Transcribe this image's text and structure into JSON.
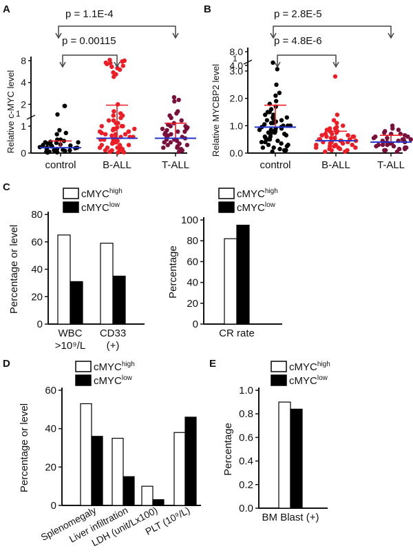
{
  "panels": {
    "A": {
      "letter": "A",
      "ylabel": "Relative c-MYC level",
      "pvals": [
        "p = 1.1E-4",
        "p = 0.00115"
      ]
    },
    "B": {
      "letter": "B",
      "ylabel": "Relative MYCBP2 level",
      "pvals": [
        "p = 2.8E-5",
        "p = 4.8E-6"
      ]
    },
    "C": {
      "letter": "C"
    },
    "D": {
      "letter": "D"
    },
    "E": {
      "letter": "E"
    }
  },
  "legend": {
    "high_base": "cMYC",
    "high_sup": "high",
    "low_base": "cMYC",
    "low_sup": "low"
  },
  "colors": {
    "control": "#000000",
    "ball": "#ee1c25",
    "tall": "#7a0f3c",
    "mean_line": "#2233cc",
    "sd_line": "#ee1c25",
    "high_bar": "#ffffff",
    "low_bar": "#000000"
  },
  "chart_data": [
    {
      "panel": "A",
      "type": "scatter",
      "ylabel": "Relative c-MYC level",
      "categories": [
        "control",
        "B-ALL",
        "T-ALL"
      ],
      "yticks": [
        "0",
        "1",
        "2",
        "4",
        "8"
      ],
      "ybreak_label": "1",
      "comparisons": [
        {
          "from": "control",
          "to": "T-ALL",
          "label": "p = 1.1E-4"
        },
        {
          "from": "control",
          "to": "B-ALL",
          "label": "p = 0.00115"
        }
      ],
      "series": [
        {
          "name": "control",
          "mean": 0.2,
          "sd_upper": 0.45,
          "values": [
            1.9,
            1.9,
            1.45,
            0.85,
            0.75,
            0.7,
            0.5,
            0.5,
            0.45,
            0.42,
            0.4,
            0.4,
            0.38,
            0.35,
            0.32,
            0.3,
            0.3,
            0.28,
            0.25,
            0.25,
            0.22,
            0.2,
            0.2,
            0.18,
            0.15,
            0.15,
            0.12,
            0.1,
            0.1,
            0.08,
            0.05,
            0.05,
            0.03,
            0.02
          ]
        },
        {
          "name": "B-ALL",
          "mean": 0.55,
          "sd_upper": 1.95,
          "values": [
            8.2,
            8.0,
            7.8,
            7.5,
            7.4,
            7.2,
            6.8,
            6.6,
            6.3,
            6.0,
            5.5,
            5.2,
            4.8,
            2.0,
            1.6,
            1.5,
            1.4,
            1.4,
            1.3,
            1.2,
            1.2,
            1.1,
            1.1,
            1.0,
            1.0,
            1.0,
            0.95,
            0.9,
            0.9,
            0.9,
            0.85,
            0.8,
            0.8,
            0.8,
            0.75,
            0.7,
            0.7,
            0.7,
            0.65,
            0.6,
            0.6,
            0.6,
            0.55,
            0.5,
            0.5,
            0.5,
            0.45,
            0.4,
            0.4,
            0.4,
            0.35,
            0.3,
            0.3,
            0.3,
            0.25,
            0.2,
            0.2,
            0.2,
            0.15,
            0.1,
            0.1,
            0.1,
            0.05,
            0.03,
            0.02
          ]
        },
        {
          "name": "T-ALL",
          "mean": 0.55,
          "sd_upper": 1.1,
          "values": [
            2.5,
            2.3,
            2.2,
            1.6,
            1.5,
            1.4,
            1.3,
            1.2,
            1.1,
            1.05,
            1.0,
            1.0,
            0.95,
            0.9,
            0.9,
            0.85,
            0.8,
            0.8,
            0.75,
            0.7,
            0.7,
            0.65,
            0.6,
            0.6,
            0.55,
            0.5,
            0.5,
            0.45,
            0.4,
            0.4,
            0.35,
            0.3,
            0.3,
            0.25,
            0.2,
            0.2,
            0.15,
            0.1,
            0.05
          ]
        }
      ]
    },
    {
      "panel": "B",
      "type": "scatter",
      "ylabel": "Relative MYCBP2 level",
      "categories": [
        "control",
        "B-ALL",
        "T-ALL"
      ],
      "yticks": [
        "0.0",
        "1.0",
        "2.0",
        "3.0",
        "4.0",
        "8.0"
      ],
      "ybreak_label": "1",
      "comparisons": [
        {
          "from": "control",
          "to": "T-ALL",
          "label": "p = 2.8E-5"
        },
        {
          "from": "control",
          "to": "B-ALL",
          "label": "p = 4.8E-6"
        }
      ],
      "series": [
        {
          "name": "control",
          "mean": 0.95,
          "sd_upper": 1.75,
          "values": [
            4.6,
            3.3,
            2.5,
            2.2,
            2.1,
            1.9,
            1.8,
            1.7,
            1.6,
            1.5,
            1.5,
            1.4,
            1.4,
            1.3,
            1.3,
            1.25,
            1.2,
            1.2,
            1.15,
            1.1,
            1.1,
            1.05,
            1.0,
            1.0,
            1.0,
            0.95,
            0.95,
            0.9,
            0.9,
            0.85,
            0.85,
            0.8,
            0.8,
            0.75,
            0.75,
            0.7,
            0.7,
            0.65,
            0.6,
            0.6,
            0.55,
            0.5,
            0.5,
            0.45,
            0.4,
            0.4,
            0.35,
            0.3,
            0.3,
            0.25,
            0.2,
            0.2,
            0.15,
            0.1,
            0.1,
            0.05
          ]
        },
        {
          "name": "B-ALL",
          "mean": 0.45,
          "sd_upper": 0.8,
          "values": [
            2.8,
            1.4,
            1.2,
            1.1,
            1.0,
            0.95,
            0.9,
            0.9,
            0.85,
            0.8,
            0.8,
            0.75,
            0.7,
            0.7,
            0.65,
            0.65,
            0.6,
            0.6,
            0.6,
            0.55,
            0.55,
            0.5,
            0.5,
            0.5,
            0.45,
            0.45,
            0.45,
            0.4,
            0.4,
            0.4,
            0.35,
            0.35,
            0.3,
            0.3,
            0.3,
            0.25,
            0.25,
            0.2,
            0.2,
            0.2,
            0.15,
            0.15,
            0.1,
            0.1,
            0.05,
            0.05
          ]
        },
        {
          "name": "T-ALL",
          "mean": 0.4,
          "sd_upper": 0.65,
          "values": [
            1.0,
            0.9,
            0.85,
            0.8,
            0.75,
            0.7,
            0.7,
            0.65,
            0.6,
            0.6,
            0.55,
            0.55,
            0.5,
            0.5,
            0.5,
            0.45,
            0.45,
            0.4,
            0.4,
            0.4,
            0.35,
            0.35,
            0.3,
            0.3,
            0.3,
            0.25,
            0.25,
            0.2,
            0.2,
            0.15,
            0.15,
            0.1,
            0.1,
            0.05
          ]
        }
      ]
    },
    {
      "panel": "C-left",
      "type": "bar",
      "ylabel": "Percentage or level",
      "categories": [
        "WBC\n>10⁹/L",
        "CD33\n(+)"
      ],
      "ylim": [
        0,
        80
      ],
      "yticks": [
        0,
        20,
        40,
        60,
        80
      ],
      "series": [
        {
          "name": "cMYC high",
          "values": [
            65,
            59
          ]
        },
        {
          "name": "cMYC low",
          "values": [
            31,
            35
          ]
        }
      ]
    },
    {
      "panel": "C-right",
      "type": "bar",
      "ylabel": "Percentage",
      "categories": [
        "CR rate"
      ],
      "ylim": [
        0,
        100
      ],
      "yticks": [
        0,
        20,
        40,
        60,
        80,
        100
      ],
      "series": [
        {
          "name": "cMYC high",
          "values": [
            82
          ]
        },
        {
          "name": "cMYC low",
          "values": [
            95
          ]
        }
      ]
    },
    {
      "panel": "D",
      "type": "bar",
      "ylabel": "Percentage or level",
      "categories": [
        "Splenomegaly",
        "Liver infiltration",
        "LDH (unit/Lx100)",
        "PLT (10⁹/L)"
      ],
      "ylim": [
        0,
        60
      ],
      "yticks": [
        0,
        20,
        40,
        60
      ],
      "series": [
        {
          "name": "cMYC high",
          "values": [
            53,
            35,
            10,
            38
          ]
        },
        {
          "name": "cMYC low",
          "values": [
            36,
            15,
            3,
            46
          ]
        }
      ]
    },
    {
      "panel": "E",
      "type": "bar",
      "ylabel": "Percentage",
      "categories": [
        "BM Blast (+)"
      ],
      "ylim": [
        0,
        1.0
      ],
      "yticks": [
        "0.0",
        "0.2",
        "0.4",
        "0.6",
        "0.8",
        "1.0"
      ],
      "series": [
        {
          "name": "cMYC high",
          "values": [
            0.9
          ]
        },
        {
          "name": "cMYC low",
          "values": [
            0.84
          ]
        }
      ]
    }
  ]
}
